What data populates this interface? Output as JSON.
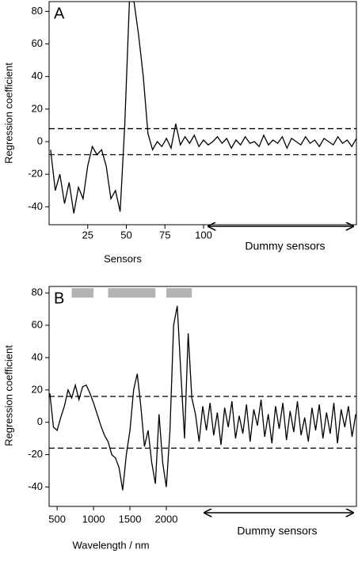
{
  "chart_data": [
    {
      "type": "line",
      "panel_label": "A",
      "xlabel": "Sensors",
      "ylabel": "Regression coefficient",
      "annotation": "Dummy sensors",
      "color": "#000000",
      "x": [
        1,
        4,
        7,
        10,
        13,
        16,
        19,
        22,
        25,
        28,
        31,
        34,
        37,
        40,
        43,
        46,
        49,
        52,
        55,
        58,
        61,
        64,
        67,
        70,
        73,
        76,
        79,
        82,
        85,
        88,
        91,
        94,
        97,
        100,
        103,
        106,
        109,
        112,
        115,
        118,
        121,
        124,
        127,
        130,
        133,
        136,
        139,
        142,
        145,
        148,
        151,
        154,
        157,
        160,
        163,
        166,
        169,
        172,
        175,
        178,
        181,
        184,
        187,
        190,
        193,
        196,
        199
      ],
      "values": [
        -5,
        -30,
        -20,
        -38,
        -25,
        -44,
        -28,
        -35,
        -15,
        -3,
        -8,
        -5,
        -15,
        -35,
        -30,
        -43,
        10,
        86,
        86,
        65,
        40,
        5,
        -5,
        0,
        -3,
        2,
        -4,
        11,
        -2,
        3,
        -1,
        4,
        -3,
        1,
        -2,
        0,
        3,
        -1,
        2,
        -4,
        1,
        -2,
        3,
        -1,
        0,
        -3,
        4,
        -2,
        1,
        -1,
        3,
        -4,
        2,
        0,
        -2,
        3,
        -1,
        1,
        -3,
        2,
        0,
        -2,
        3,
        -1,
        1,
        -3,
        2
      ],
      "xlim": [
        0,
        199
      ],
      "ylim": [
        -51,
        86
      ],
      "xticks": [
        25,
        50,
        75,
        100
      ],
      "yticks": [
        -40,
        -20,
        0,
        20,
        40,
        60,
        80
      ],
      "hlines": [
        8,
        -8
      ]
    },
    {
      "type": "line",
      "panel_label": "B",
      "xlabel": "Wavelength / nm",
      "ylabel": "Regression coefficient",
      "annotation": "Dummy sensors",
      "color": "#000000",
      "bands": [
        [
          700,
          1000
        ],
        [
          1200,
          1850
        ],
        [
          2000,
          2350
        ]
      ],
      "band_color": "#b3b3b3",
      "x": [
        400,
        450,
        500,
        550,
        600,
        650,
        700,
        750,
        800,
        850,
        900,
        950,
        1000,
        1050,
        1100,
        1150,
        1200,
        1250,
        1300,
        1350,
        1400,
        1450,
        1500,
        1550,
        1600,
        1650,
        1700,
        1750,
        1800,
        1850,
        1900,
        1950,
        2000,
        2050,
        2100,
        2150,
        2200,
        2250,
        2300,
        2350,
        2400,
        2450,
        2500,
        2550,
        2600,
        2650,
        2700,
        2750,
        2800,
        2850,
        2900,
        2950,
        3000,
        3050,
        3100,
        3150,
        3200,
        3250,
        3300,
        3350,
        3400,
        3450,
        3500,
        3550,
        3600,
        3650,
        3700,
        3750,
        3800,
        3850,
        3900,
        3950,
        4000,
        4050,
        4100,
        4150,
        4200,
        4250,
        4300,
        4350,
        4400,
        4450,
        4500,
        4550,
        4600
      ],
      "values": [
        18,
        -3,
        -5,
        3,
        10,
        20,
        15,
        23,
        14,
        22,
        23,
        18,
        12,
        5,
        -2,
        -8,
        -12,
        -20,
        -22,
        -28,
        -42,
        -20,
        -5,
        20,
        30,
        10,
        -15,
        -5,
        -25,
        -38,
        5,
        -25,
        -40,
        -5,
        60,
        72,
        30,
        -10,
        55,
        15,
        5,
        -12,
        10,
        -5,
        12,
        -8,
        6,
        -14,
        9,
        -3,
        13,
        -10,
        4,
        -7,
        11,
        -12,
        8,
        -2,
        14,
        -9,
        5,
        -13,
        10,
        -4,
        12,
        -11,
        7,
        -6,
        13,
        -8,
        3,
        -12,
        9,
        -5,
        11,
        -10,
        6,
        -7,
        12,
        -13,
        8,
        -3,
        10,
        -9,
        5
      ],
      "xlim": [
        390,
        4610
      ],
      "ylim": [
        -52,
        84
      ],
      "xticks": [
        500,
        1000,
        1500,
        2000
      ],
      "yticks": [
        -40,
        -20,
        0,
        20,
        40,
        60,
        80
      ],
      "hlines": [
        16,
        -16
      ]
    }
  ]
}
